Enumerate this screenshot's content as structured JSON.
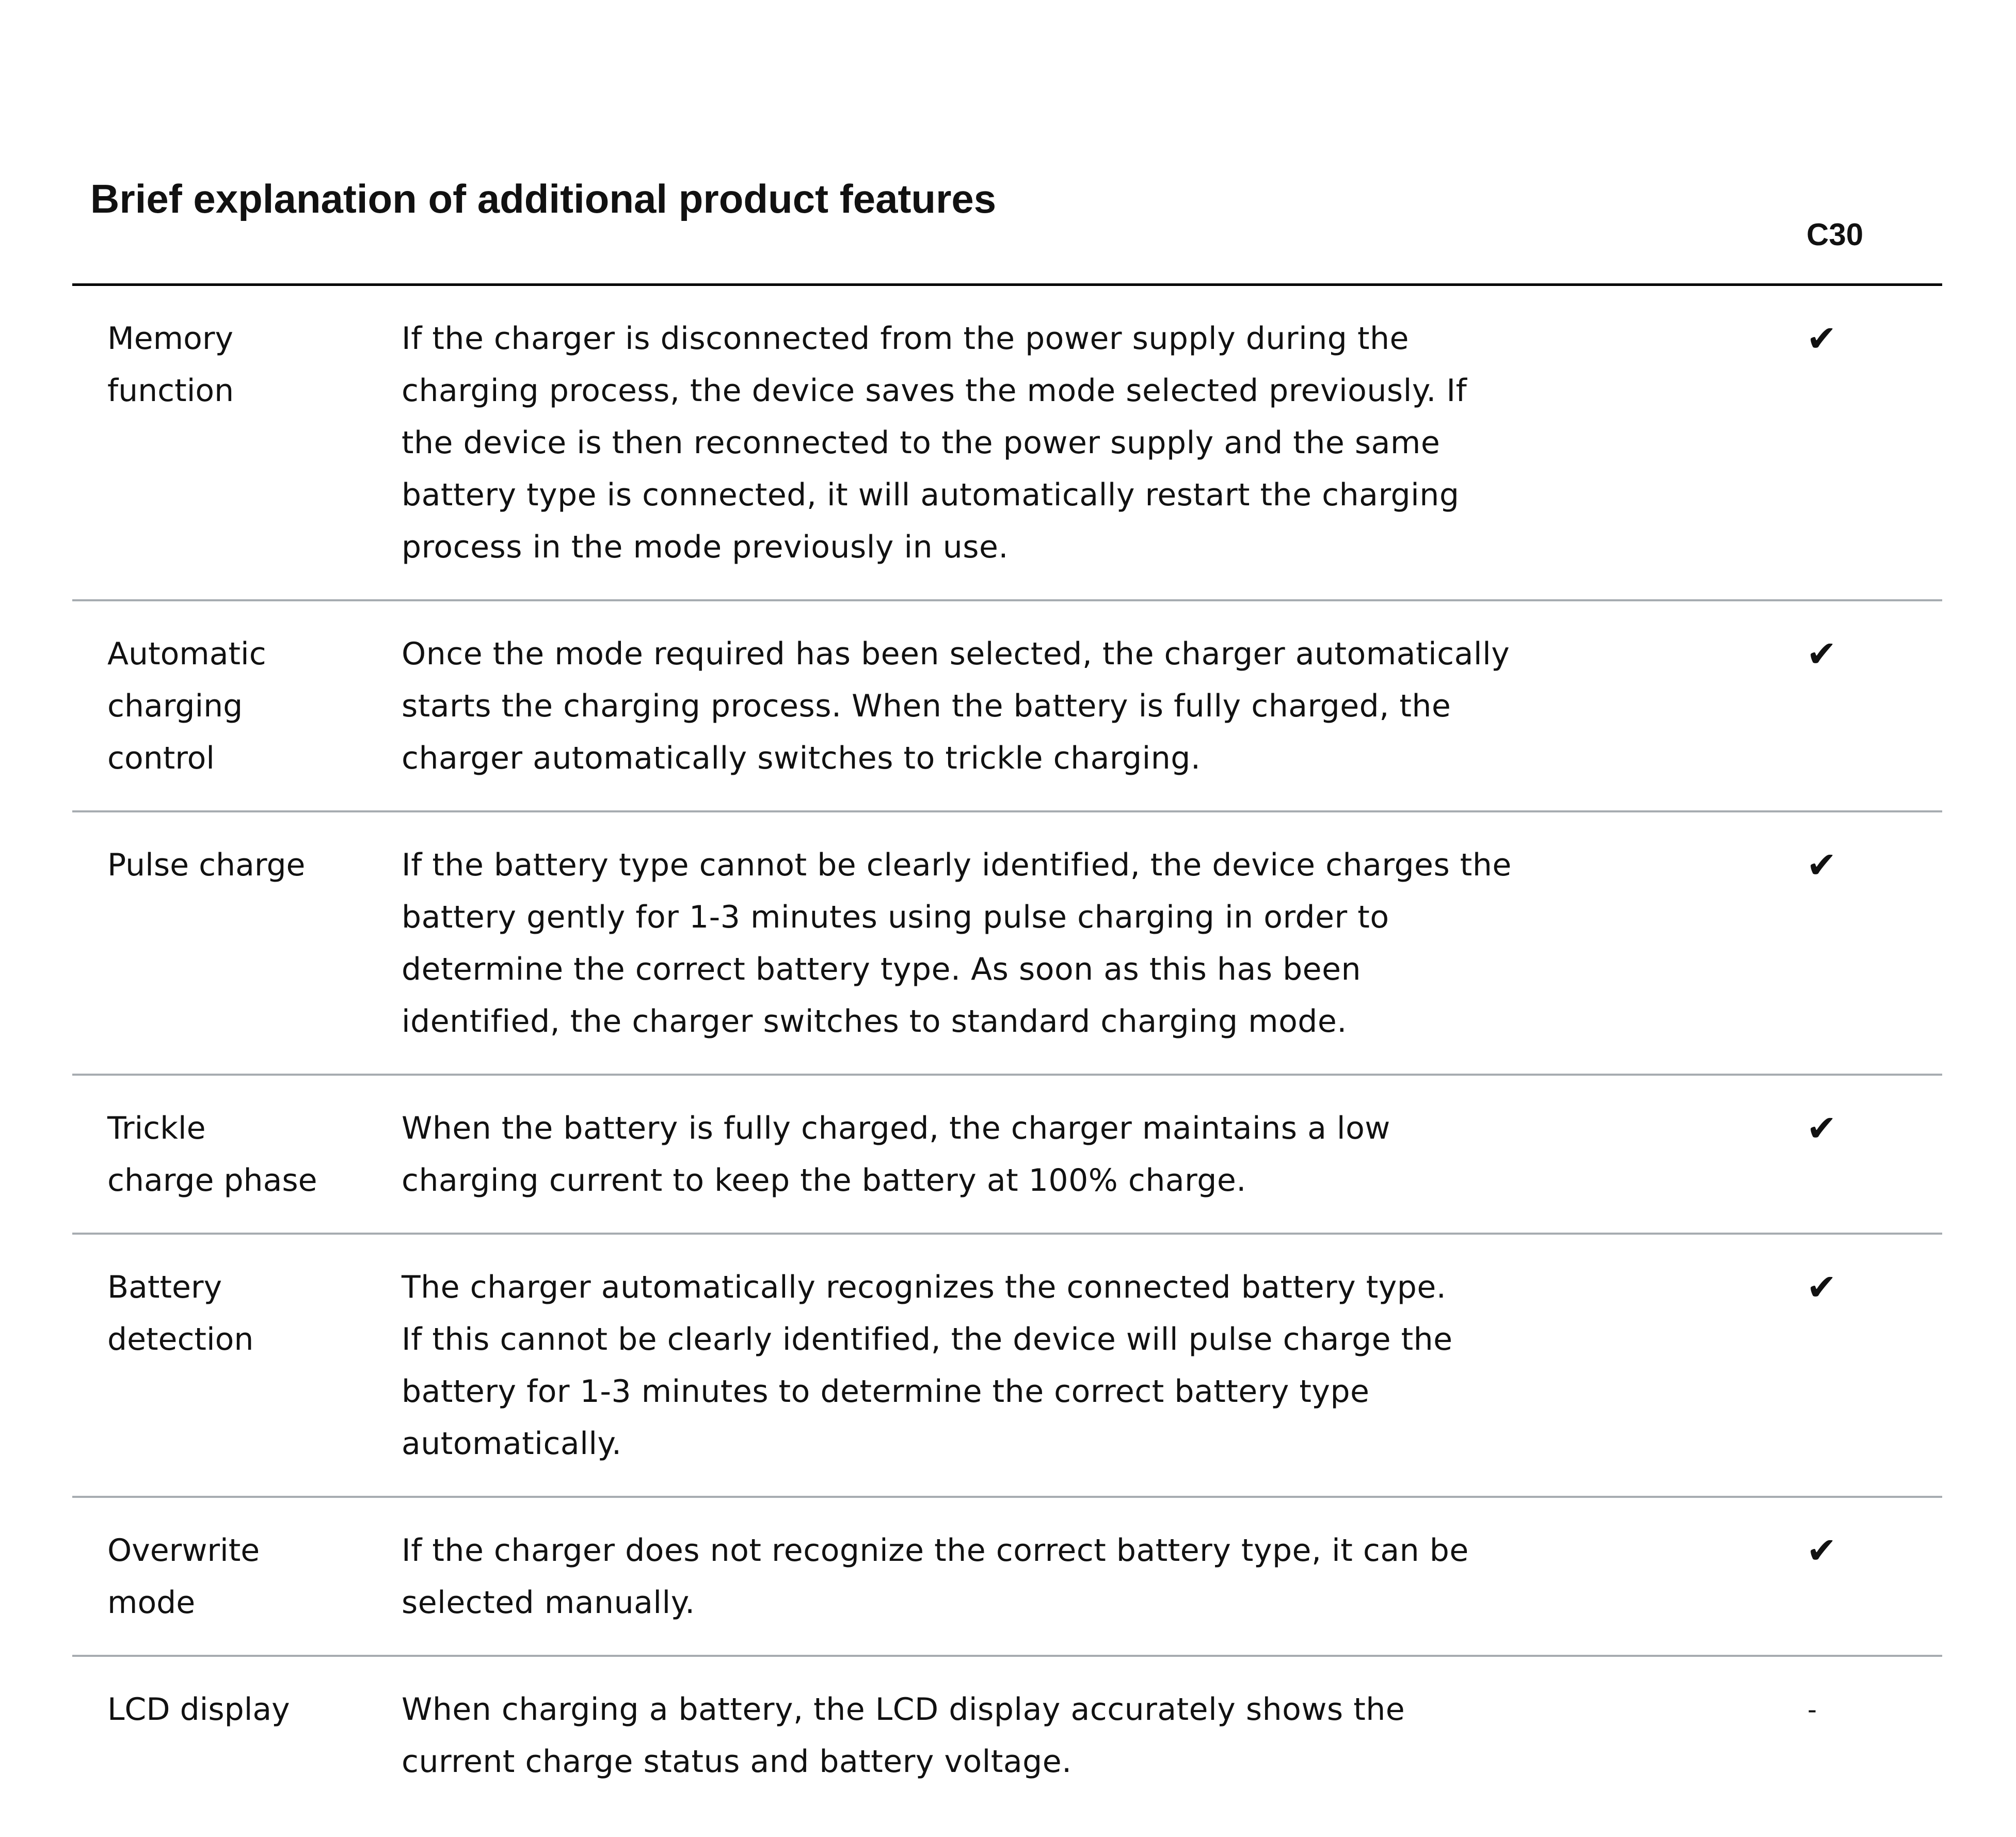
{
  "title": "Brief explanation of additional product features",
  "column_header": "C30",
  "icons": {
    "check": "check-mark-icon"
  },
  "rows": [
    {
      "feature": [
        "Memory",
        "function"
      ],
      "description": [
        "If the charger is disconnected from the power supply during the",
        "charging process, the device saves the mode selected previously. If",
        "the device is then reconnected to the power supply and the same",
        "battery type is connected, it will automatically restart the charging",
        "process in the mode previously in use."
      ],
      "c30": "✔"
    },
    {
      "feature": [
        "Automatic",
        "charging",
        "control"
      ],
      "description": [
        "Once the mode required has been selected, the charger automatically",
        "starts the charging process. When the battery is fully charged, the",
        "charger automatically switches to trickle charging."
      ],
      "c30": "✔"
    },
    {
      "feature": [
        "Pulse charge"
      ],
      "description": [
        "If the battery type cannot be clearly identified, the device charges the",
        "battery gently for 1-3 minutes using pulse charging in order to",
        "determine the correct battery type. As soon as this has been",
        "identified, the charger switches to standard charging mode."
      ],
      "c30": "✔"
    },
    {
      "feature": [
        "Trickle",
        "charge phase"
      ],
      "description": [
        "When the battery is fully charged, the charger maintains a low",
        "charging current to keep the battery at 100% charge."
      ],
      "c30": "✔"
    },
    {
      "feature": [
        "Battery",
        "detection"
      ],
      "description": [
        "The charger automatically recognizes the connected battery type.",
        "If this cannot be clearly identified, the device will pulse charge the",
        "battery for 1-3 minutes to determine the correct battery type",
        "automatically."
      ],
      "c30": "✔"
    },
    {
      "feature": [
        "Overwrite",
        "mode"
      ],
      "description": [
        "If the charger does not recognize the correct battery type, it can be",
        "selected manually."
      ],
      "c30": "✔"
    },
    {
      "feature": [
        "LCD display"
      ],
      "description": [
        "When charging a battery, the LCD display accurately shows the",
        "current charge status and battery voltage."
      ],
      "c30": "-"
    }
  ]
}
